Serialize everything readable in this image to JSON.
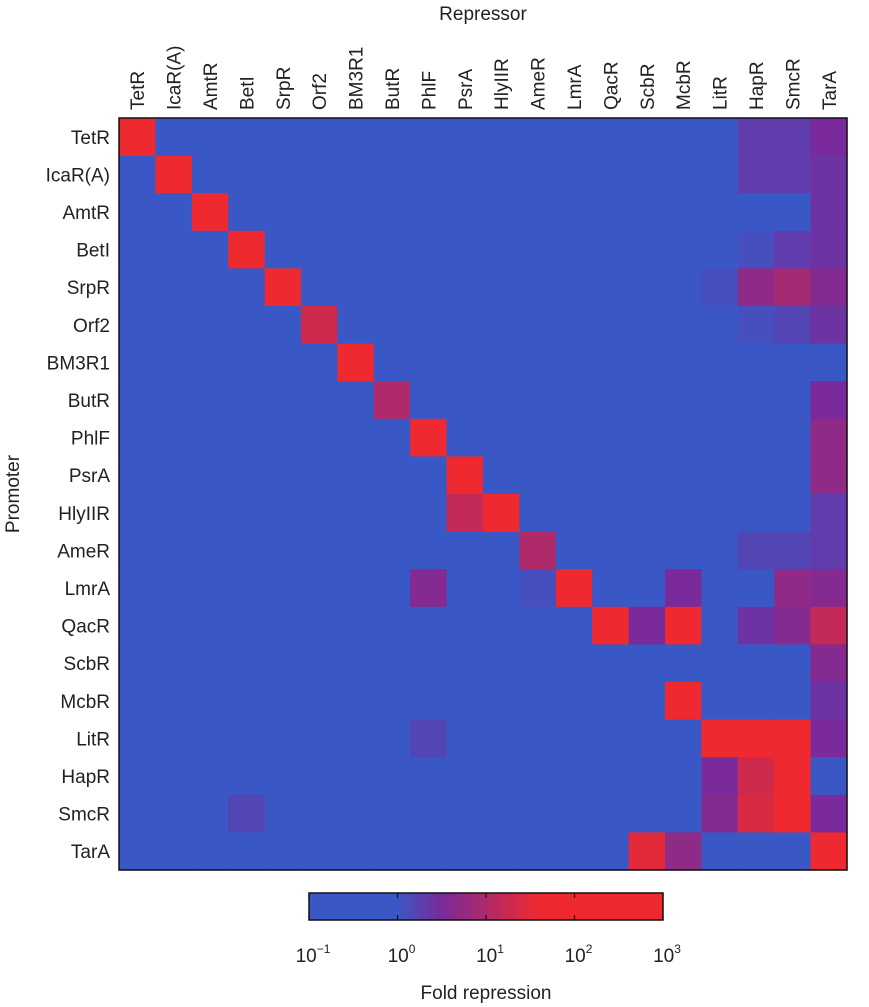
{
  "chart_data": {
    "type": "heatmap",
    "title": "",
    "xlabel": "Repressor",
    "ylabel": "Promoter",
    "x_categories": [
      "TetR",
      "IcaR(A)",
      "AmtR",
      "BetI",
      "SrpR",
      "Orf2",
      "BM3R1",
      "ButR",
      "PhlF",
      "PsrA",
      "HlyIIR",
      "AmeR",
      "LmrA",
      "QacR",
      "ScbR",
      "McbR",
      "LitR",
      "HapR",
      "SmcR",
      "TarA"
    ],
    "y_categories": [
      "TetR",
      "IcaR(A)",
      "AmtR",
      "BetI",
      "SrpR",
      "Orf2",
      "BM3R1",
      "ButR",
      "PhlF",
      "PsrA",
      "HlyIIR",
      "AmeR",
      "LmrA",
      "QacR",
      "ScbR",
      "McbR",
      "LitR",
      "HapR",
      "SmcR",
      "TarA"
    ],
    "value_scale": "log10",
    "value_note": "values are log10(fold repression); rows = promoter, columns = repressor",
    "log10_values": [
      [
        3.0,
        -0.5,
        -0.4,
        -0.4,
        -0.5,
        -0.5,
        -0.5,
        -0.5,
        -0.5,
        -0.5,
        -0.5,
        -0.4,
        -0.4,
        -0.4,
        -0.4,
        -0.6,
        -0.4,
        0.3,
        0.3,
        0.5
      ],
      [
        -0.4,
        3.0,
        -0.3,
        -0.4,
        -0.4,
        -0.4,
        -0.4,
        -0.4,
        -0.3,
        -0.3,
        -0.4,
        -0.3,
        -0.3,
        -0.4,
        -0.4,
        -0.4,
        -0.3,
        0.3,
        0.3,
        0.4
      ],
      [
        -0.4,
        -0.4,
        3.0,
        -0.3,
        -0.5,
        -0.4,
        -0.4,
        -0.5,
        -0.3,
        -0.3,
        -0.3,
        -0.4,
        -0.2,
        -0.4,
        -0.4,
        -0.5,
        -0.5,
        -0.4,
        -0.4,
        0.4
      ],
      [
        -0.4,
        -0.4,
        -0.1,
        3.0,
        -0.4,
        -0.4,
        -0.4,
        -0.4,
        -0.3,
        -0.3,
        -0.4,
        -0.3,
        -0.1,
        -0.4,
        -0.3,
        -0.3,
        -0.2,
        0.1,
        0.3,
        0.4
      ],
      [
        -0.4,
        -0.3,
        -0.4,
        -0.4,
        3.0,
        -0.4,
        -0.4,
        -0.5,
        -0.4,
        -0.4,
        -0.4,
        -0.4,
        -0.4,
        -0.5,
        -0.4,
        -0.3,
        0.1,
        0.7,
        0.9,
        0.6
      ],
      [
        -0.3,
        -0.3,
        -0.3,
        -0.3,
        -0.3,
        1.3,
        -0.3,
        -0.1,
        -0.3,
        -0.3,
        -0.3,
        -0.3,
        -0.3,
        -0.3,
        -0.2,
        -0.3,
        -0.3,
        0.1,
        0.2,
        0.4
      ],
      [
        -0.5,
        -0.5,
        -0.2,
        -0.5,
        -0.6,
        -0.6,
        2.0,
        -0.5,
        -0.5,
        -0.5,
        -0.5,
        -0.4,
        -0.5,
        -0.5,
        -0.5,
        -0.5,
        -0.5,
        -0.5,
        -0.5,
        -0.3
      ],
      [
        -0.3,
        -0.4,
        -0.4,
        -0.4,
        -0.4,
        -0.4,
        -0.4,
        1.0,
        -0.4,
        -0.3,
        -0.4,
        -0.3,
        -0.4,
        -0.3,
        -0.3,
        -0.4,
        -0.3,
        -0.4,
        -0.4,
        0.5
      ],
      [
        -0.4,
        -0.4,
        -0.4,
        -0.4,
        -0.4,
        -0.4,
        -0.4,
        -0.4,
        3.0,
        -0.3,
        -0.4,
        -0.4,
        -0.4,
        -0.4,
        -0.3,
        -0.3,
        -0.4,
        -0.4,
        -0.4,
        0.7
      ],
      [
        -0.4,
        -0.3,
        -0.2,
        -0.2,
        -0.3,
        -0.3,
        -0.3,
        -0.3,
        -0.3,
        3.0,
        -0.3,
        -0.3,
        -0.4,
        -0.3,
        -0.3,
        -0.3,
        -0.4,
        -0.4,
        -0.4,
        0.7
      ],
      [
        -0.4,
        -0.4,
        -0.4,
        -0.4,
        -0.4,
        -0.4,
        -0.4,
        -0.5,
        -0.4,
        1.2,
        2.2,
        -0.4,
        -0.4,
        -0.4,
        -0.4,
        -0.5,
        -0.4,
        -0.1,
        -0.1,
        0.3
      ],
      [
        -0.4,
        -0.4,
        -0.4,
        -0.4,
        -0.5,
        -0.4,
        -0.4,
        -0.4,
        -0.2,
        -0.5,
        -0.5,
        1.0,
        -0.5,
        -0.4,
        -0.4,
        -0.4,
        -0.4,
        0.2,
        0.2,
        0.3
      ],
      [
        -0.3,
        -0.3,
        -0.3,
        -0.3,
        -0.3,
        -0.2,
        -0.3,
        -0.3,
        0.6,
        -0.3,
        -0.3,
        0.1,
        3.0,
        -0.3,
        -0.2,
        0.5,
        -0.3,
        -0.1,
        0.7,
        0.6
      ],
      [
        -0.3,
        -0.4,
        -0.1,
        -0.4,
        -0.4,
        -0.4,
        -0.4,
        -0.4,
        -0.4,
        -0.3,
        -0.4,
        -0.4,
        -0.1,
        3.0,
        0.5,
        3.0,
        -0.4,
        0.4,
        0.6,
        1.2
      ],
      [
        -0.4,
        -0.4,
        -0.4,
        -0.4,
        -0.4,
        -0.4,
        -0.4,
        -0.4,
        -0.4,
        -0.4,
        -0.4,
        -0.4,
        -0.4,
        -0.4,
        0.0,
        -0.5,
        -0.5,
        -0.5,
        -0.5,
        0.6
      ],
      [
        -0.4,
        -0.4,
        -0.4,
        -0.4,
        -0.4,
        -0.4,
        -0.4,
        -0.4,
        -0.4,
        -0.4,
        -0.4,
        -0.3,
        -0.3,
        -0.3,
        -0.3,
        3.0,
        -0.4,
        -0.4,
        -0.4,
        0.4
      ],
      [
        -0.4,
        -0.4,
        -0.3,
        -0.3,
        -0.3,
        -0.3,
        0.0,
        -0.4,
        0.2,
        -0.3,
        -0.3,
        -0.4,
        -0.3,
        -0.4,
        -0.3,
        -0.4,
        3.0,
        3.0,
        3.0,
        0.5
      ],
      [
        -0.3,
        -0.5,
        -0.5,
        -0.5,
        -0.5,
        -0.6,
        -0.4,
        -0.4,
        -0.4,
        -0.4,
        -0.4,
        -0.4,
        -0.4,
        -0.4,
        -0.4,
        -0.4,
        0.5,
        1.3,
        2.5,
        -0.1
      ],
      [
        -0.2,
        0.0,
        0.0,
        0.2,
        -0.1,
        -0.1,
        -0.2,
        -0.2,
        -0.2,
        -0.1,
        0.0,
        0.0,
        -0.1,
        -0.2,
        -0.2,
        0.0,
        0.6,
        1.4,
        1.8,
        0.5
      ],
      [
        -0.4,
        -0.4,
        -0.4,
        -0.4,
        -0.4,
        -0.4,
        -0.4,
        -0.4,
        -0.4,
        -0.4,
        -0.4,
        -0.4,
        -0.4,
        -0.3,
        1.5,
        0.7,
        -0.5,
        -0.5,
        -0.5,
        3.0
      ]
    ],
    "colorbar": {
      "label": "Fold repression",
      "log10_range": [
        -1,
        3
      ],
      "ticks": [
        {
          "base": "10",
          "exp": "−1",
          "log10": -1
        },
        {
          "base": "10",
          "exp": "0",
          "log10": 0
        },
        {
          "base": "10",
          "exp": "1",
          "log10": 1
        },
        {
          "base": "10",
          "exp": "2",
          "log10": 2
        },
        {
          "base": "10",
          "exp": "3",
          "log10": 3
        }
      ],
      "colors": {
        "low": "#3a57c6",
        "mid": "#7a2a9a",
        "high": "#ee2a30"
      }
    },
    "grid": false
  }
}
